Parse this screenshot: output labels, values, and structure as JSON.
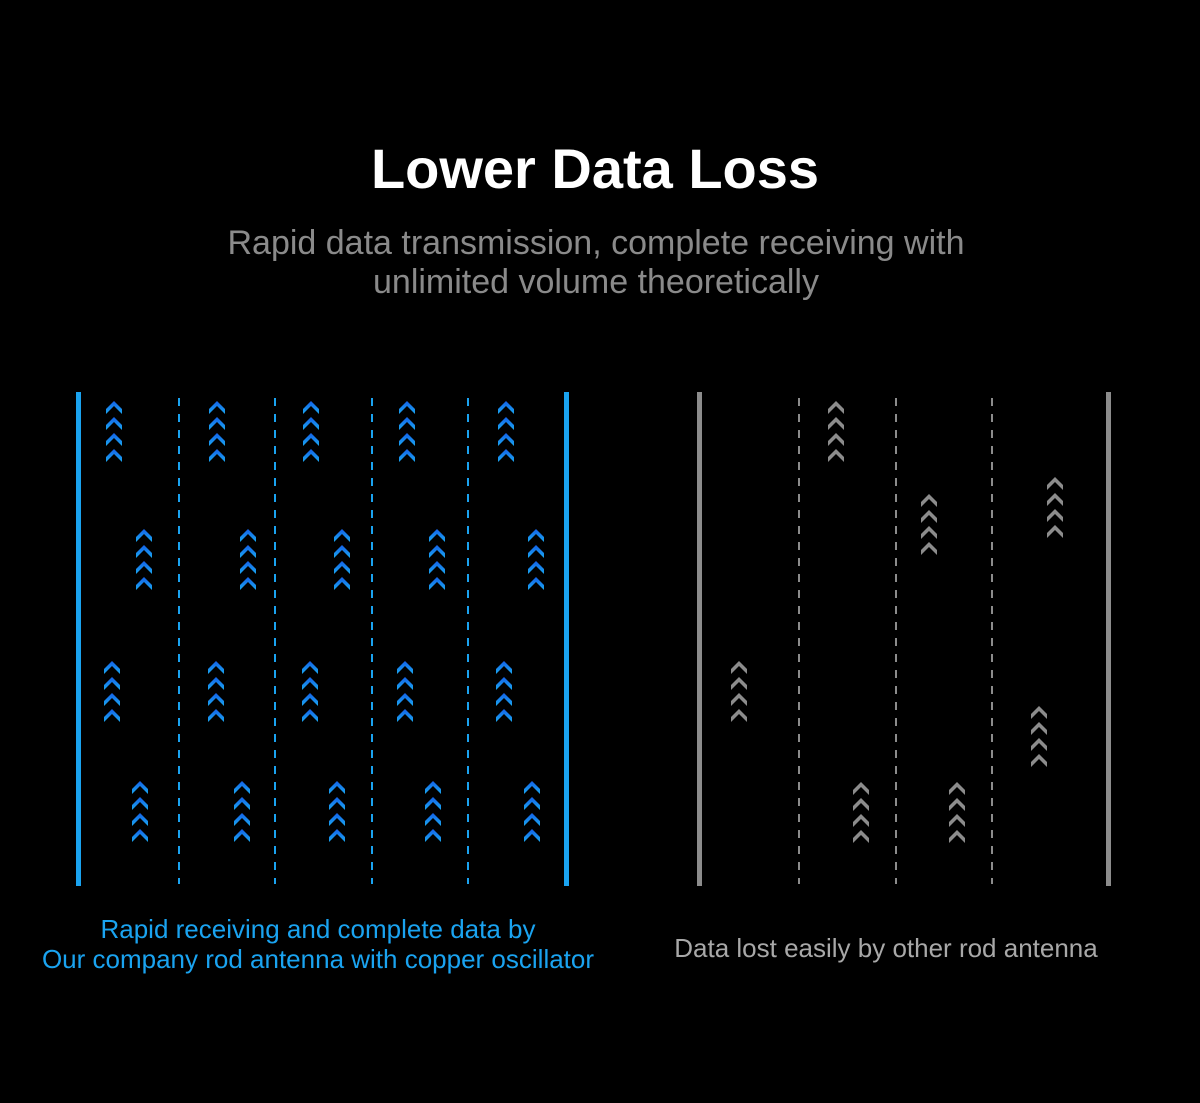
{
  "title": "Lower Data Loss",
  "subtitle_lines": [
    "Rapid data transmission, complete receiving with",
    "unlimited volume theoretically"
  ],
  "left_panel": {
    "caption_lines": [
      "Rapid receiving and complete data by",
      "Our company rod antenna with copper oscillator"
    ],
    "accent_color": "#1aa3f0",
    "arrow_color": "#0a7ae0"
  },
  "right_panel": {
    "caption": "Data lost easily by other rod antenna",
    "accent_color": "#8c8c8c",
    "arrow_color": "#8c8c8c"
  }
}
